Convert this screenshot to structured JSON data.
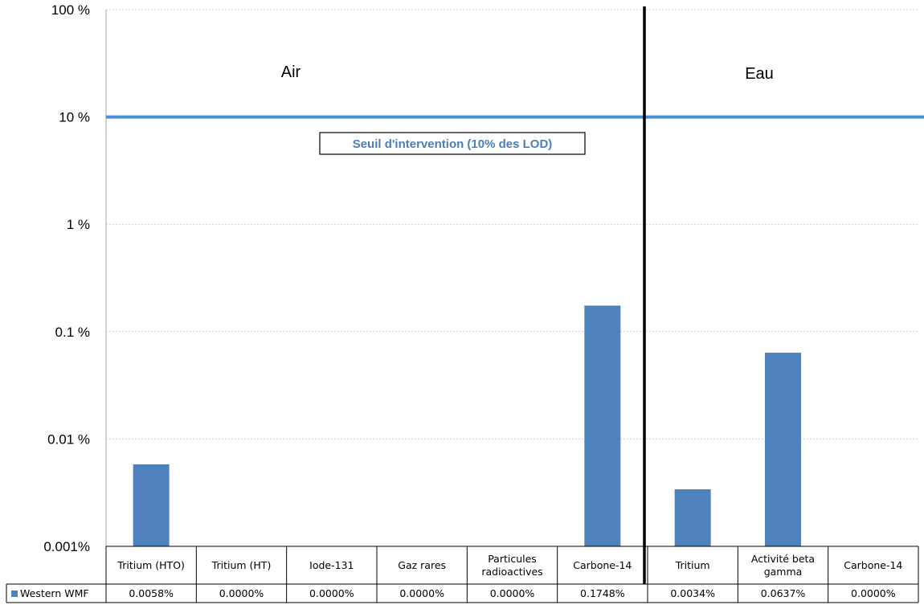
{
  "chart_data": {
    "type": "bar",
    "y_scale": "log",
    "ylim": [
      0.001,
      100
    ],
    "y_ticks": [
      {
        "value": 100,
        "label": "100 %"
      },
      {
        "value": 10,
        "label": "10 %"
      },
      {
        "value": 1,
        "label": "1 %"
      },
      {
        "value": 0.1,
        "label": "0.1 %"
      },
      {
        "value": 0.01,
        "label": "0.01 %"
      },
      {
        "value": 0.001,
        "label": "0.001%"
      }
    ],
    "categories": [
      "Tritium (HTO)",
      "Tritium (HT)",
      "Iode-131",
      "Gaz rares",
      "Particules radioactives",
      "Carbone-14",
      "Tritium",
      "Activité beta gamma",
      "Carbone-14"
    ],
    "category_lines": [
      [
        "Tritium (HTO)"
      ],
      [
        "Tritium (HT)"
      ],
      [
        "Iode-131"
      ],
      [
        "Gaz rares"
      ],
      [
        "Particules",
        "radioactives"
      ],
      [
        "Carbone-14"
      ],
      [
        "Tritium"
      ],
      [
        "Activité beta",
        "gamma"
      ],
      [
        "Carbone-14"
      ]
    ],
    "series": [
      {
        "name": "Western WMF",
        "color": "#4f81bd",
        "values": [
          0.0058,
          0.0,
          0.0,
          0.0,
          0.0,
          0.1748,
          0.0034,
          0.0637,
          0.0
        ],
        "value_labels": [
          "0.0058%",
          "0.0000%",
          "0.0000%",
          "0.0000%",
          "0.0000%",
          "0.1748%",
          "0.0034%",
          "0.0637%",
          "0.0000%"
        ]
      }
    ],
    "groups": [
      {
        "label": "Air",
        "categories": [
          0,
          1,
          2,
          3,
          4,
          5
        ]
      },
      {
        "label": "Eau",
        "categories": [
          6,
          7,
          8
        ]
      }
    ],
    "threshold": {
      "value": 10,
      "label": "Seuil d'intervention (10% des LOD)",
      "color": "#4a90d9"
    },
    "grid": true,
    "data_table": true
  }
}
